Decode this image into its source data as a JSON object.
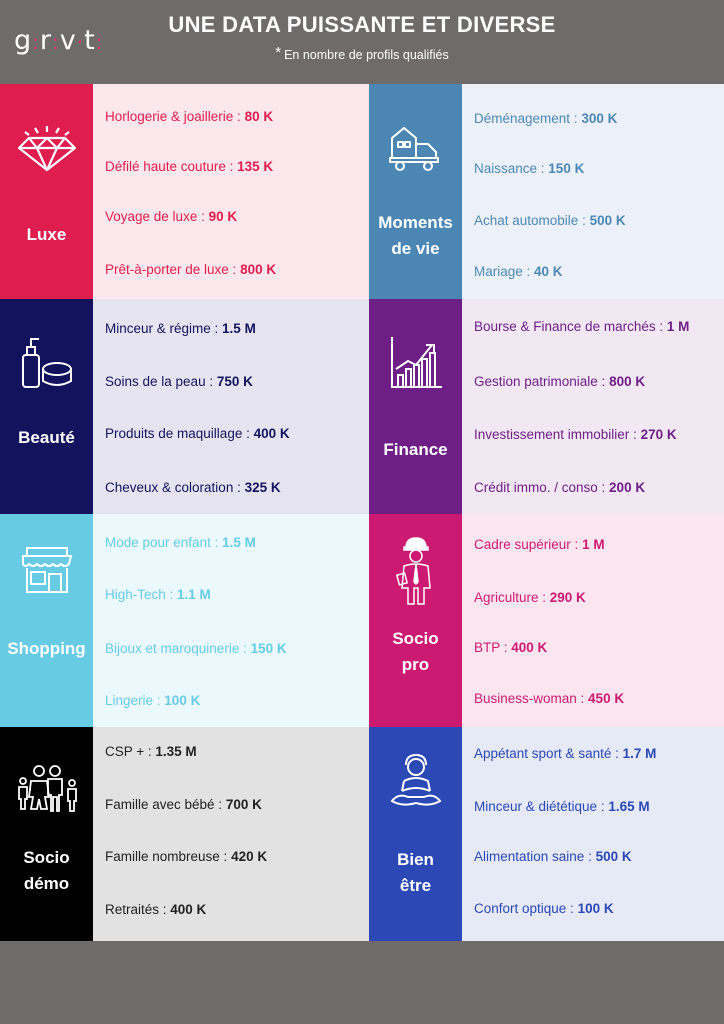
{
  "header": {
    "logo": [
      "g",
      "r",
      "v",
      "t"
    ],
    "title": "UNE DATA PUISSANTE ET DIVERSE",
    "subtitle_mark": "*",
    "subtitle": "En nombre de profils qualifiés"
  },
  "colors": {
    "luxe": "#df1d4f",
    "luxe_bg": "#fce7ec",
    "moments": "#4c87b4",
    "moments_bg": "#ecf1f9",
    "beaute": "#13135d",
    "beaute_bg": "#e5e4f0",
    "finance": "#6d1f86",
    "finance_bg": "#f2e8f3",
    "shopping": "#67cbe3",
    "shopping_bg": "#ecf9fc",
    "socio_pro": "#cc1a72",
    "socio_pro_bg": "#fbe6f0",
    "socio_demo": "#000000",
    "socio_demo_bg": "#e2e2e2",
    "bien_etre": "#2b48b5",
    "bien_etre_bg": "#e6e9f6"
  },
  "categories": {
    "luxe": {
      "label": [
        "Luxe"
      ],
      "icon": "diamond-icon",
      "items": [
        {
          "name": "Horlogerie & joaillerie",
          "value": "80 K"
        },
        {
          "name": "Défilé haute couture",
          "value": "135 K"
        },
        {
          "name": "Voyage de luxe",
          "value": "90 K"
        },
        {
          "name": "Prêt-à-porter de luxe",
          "value": "800 K"
        }
      ]
    },
    "moments": {
      "label": [
        "Moments",
        "de vie"
      ],
      "icon": "moving-truck-icon",
      "items": [
        {
          "name": "Déménagement",
          "value": "300 K"
        },
        {
          "name": "Naissance",
          "value": "150 K"
        },
        {
          "name": "Achat automobile",
          "value": "500 K"
        },
        {
          "name": "Mariage",
          "value": "40 K"
        }
      ]
    },
    "beaute": {
      "label": [
        "Beauté"
      ],
      "icon": "cosmetics-icon",
      "items": [
        {
          "name": "Minceur & régime",
          "value": "1.5 M"
        },
        {
          "name": "Soins de la peau",
          "value": "750 K"
        },
        {
          "name": "Produits de maquillage",
          "value": "400 K"
        },
        {
          "name": "Cheveux & coloration",
          "value": "325 K"
        }
      ]
    },
    "finance": {
      "label": [
        "Finance"
      ],
      "icon": "growth-chart-icon",
      "items": [
        {
          "name": "Bourse & Finance de marchés",
          "value": "1 M"
        },
        {
          "name": "Gestion patrimoniale",
          "value": "800 K"
        },
        {
          "name": "Investissement immobilier",
          "value": "270 K"
        },
        {
          "name": "Crédit immo. / conso",
          "value": "200 K"
        }
      ]
    },
    "shopping": {
      "label": [
        "Shopping"
      ],
      "icon": "store-icon",
      "items": [
        {
          "name": "Mode pour enfant",
          "value": "1.5 M"
        },
        {
          "name": "High-Tech",
          "value": "1.1 M"
        },
        {
          "name": "Bijoux et maroquinerie",
          "value": "150 K"
        },
        {
          "name": "Lingerie",
          "value": "100 K"
        }
      ]
    },
    "socio_pro": {
      "label": [
        "Socio",
        "pro"
      ],
      "icon": "worker-icon",
      "items": [
        {
          "name": "Cadre supérieur",
          "value": "1 M"
        },
        {
          "name": "Agriculture",
          "value": "290 K"
        },
        {
          "name": "BTP",
          "value": "400 K"
        },
        {
          "name": "Business-woman",
          "value": "450 K"
        }
      ]
    },
    "socio_demo": {
      "label": [
        "Socio",
        "démo"
      ],
      "icon": "family-icon",
      "items": [
        {
          "name": "CSP +",
          "value": "1.35 M"
        },
        {
          "name": "Famille avec bébé",
          "value": "700 K"
        },
        {
          "name": "Famille nombreuse",
          "value": "420 K"
        },
        {
          "name": "Retraités",
          "value": "400 K"
        }
      ]
    },
    "bien_etre": {
      "label": [
        "Bien",
        "être"
      ],
      "icon": "meditation-icon",
      "items": [
        {
          "name": "Appétant sport & santé",
          "value": "1.7 M"
        },
        {
          "name": "Minceur & diététique",
          "value": "1.65 M"
        },
        {
          "name": "Alimentation saine",
          "value": "500 K"
        },
        {
          "name": "Confort optique",
          "value": "100 K"
        }
      ]
    }
  }
}
